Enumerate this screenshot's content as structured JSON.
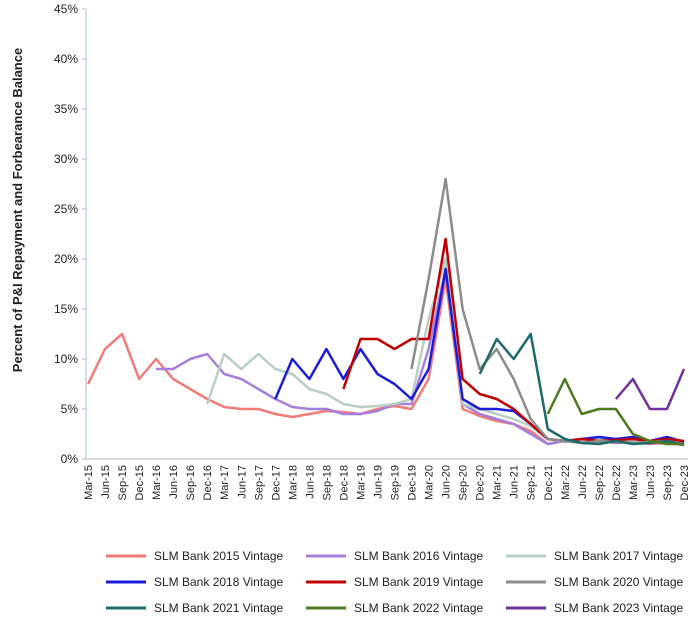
{
  "chart_data": {
    "type": "line",
    "y_label": "Percent of P&I Repayment and Forbearance  Balance",
    "categories": [
      "Mar-15",
      "Jun-15",
      "Sep-15",
      "Dec-15",
      "Mar-16",
      "Jun-16",
      "Sep-16",
      "Dec-16",
      "Mar-17",
      "Jun-17",
      "Sep-17",
      "Dec-17",
      "Mar-18",
      "Jun-18",
      "Sep-18",
      "Dec-18",
      "Mar-19",
      "Jun-19",
      "Sep-19",
      "Dec-19",
      "Mar-20",
      "Jun-20",
      "Sep-20",
      "Dec-20",
      "Mar-21",
      "Jun-21",
      "Sep-21",
      "Dec-21",
      "Mar-22",
      "Jun-22",
      "Sep-22",
      "Dec-22",
      "Mar-23",
      "Jun-23",
      "Sep-23",
      "Dec-23"
    ],
    "ylim": [
      0,
      45
    ],
    "yticks": [
      {
        "value": 0,
        "label": "0%"
      },
      {
        "value": 5,
        "label": "5%"
      },
      {
        "value": 10,
        "label": "10%"
      },
      {
        "value": 15,
        "label": "15%"
      },
      {
        "value": 20,
        "label": "20%"
      },
      {
        "value": 25,
        "label": "25%"
      },
      {
        "value": 30,
        "label": "30%"
      },
      {
        "value": 35,
        "label": "35%"
      },
      {
        "value": 40,
        "label": "40%"
      },
      {
        "value": 45,
        "label": "45%"
      }
    ],
    "series": [
      {
        "name": "SLM Bank 2015 Vintage",
        "color": "#f07c78",
        "values": [
          7.5,
          11,
          12.5,
          8,
          10,
          8,
          7,
          6,
          5.2,
          5,
          5,
          4.5,
          4.2,
          4.5,
          4.8,
          4.7,
          4.5,
          5,
          5.3,
          5,
          8,
          18,
          5,
          4.3,
          3.8,
          3.5,
          2.8,
          1.5,
          1.8,
          1.6,
          1.8,
          1.6,
          1.7,
          1.5,
          1.6,
          1.4
        ]
      },
      {
        "name": "SLM Bank 2016 Vintage",
        "color": "#a67fdc",
        "values": [
          null,
          null,
          null,
          null,
          9,
          9,
          10,
          10.5,
          8.5,
          8,
          7,
          6,
          5.2,
          5,
          5,
          4.5,
          4.5,
          4.8,
          5.5,
          5.5,
          11,
          19,
          5.5,
          4.5,
          4,
          3.5,
          2.5,
          1.5,
          1.8,
          1.7,
          1.8,
          1.6,
          1.8,
          1.6,
          1.7,
          1.5
        ]
      },
      {
        "name": "SLM Bank 2017 Vintage",
        "color": "#b9cfc4",
        "values": [
          null,
          null,
          null,
          null,
          null,
          null,
          null,
          5.5,
          10.5,
          9,
          10.5,
          9,
          8.5,
          7,
          6.5,
          5.5,
          5.2,
          5.3,
          5.5,
          6,
          14,
          20,
          5.5,
          5,
          4.5,
          4,
          3.3,
          2,
          1.7,
          1.8,
          2,
          1.8,
          1.9,
          1.7,
          2,
          1.6
        ]
      },
      {
        "name": "SLM Bank 2018 Vintage",
        "color": "#1c1cd8",
        "values": [
          null,
          null,
          null,
          null,
          null,
          null,
          null,
          null,
          null,
          null,
          null,
          6,
          10,
          8,
          11,
          8,
          11,
          8.5,
          7.5,
          6,
          9,
          19,
          6,
          5,
          5,
          4.8,
          3.5,
          2,
          1.8,
          2,
          2.2,
          2,
          2.2,
          1.8,
          2.2,
          1.7
        ]
      },
      {
        "name": "SLM Bank 2019 Vintage",
        "color": "#c00000",
        "values": [
          null,
          null,
          null,
          null,
          null,
          null,
          null,
          null,
          null,
          null,
          null,
          null,
          null,
          null,
          null,
          7,
          12,
          12,
          11,
          12,
          12,
          22,
          8,
          6.5,
          6,
          5,
          3.5,
          2,
          1.8,
          2,
          1.8,
          1.9,
          2,
          1.8,
          2,
          1.8
        ]
      },
      {
        "name": "SLM Bank 2020 Vintage",
        "color": "#8c8c8c",
        "values": [
          null,
          null,
          null,
          null,
          null,
          null,
          null,
          null,
          null,
          null,
          null,
          null,
          null,
          null,
          null,
          null,
          null,
          null,
          null,
          9,
          18,
          28,
          15,
          9,
          11,
          8,
          4,
          2,
          1.8,
          1.6,
          1.8,
          1.7,
          1.6,
          1.7,
          1.8,
          1.5
        ]
      },
      {
        "name": "SLM Bank 2021 Vintage",
        "color": "#1f6b6b",
        "values": [
          null,
          null,
          null,
          null,
          null,
          null,
          null,
          null,
          null,
          null,
          null,
          null,
          null,
          null,
          null,
          null,
          null,
          null,
          null,
          null,
          null,
          null,
          null,
          8.5,
          12,
          10,
          12.5,
          3,
          2,
          1.6,
          1.5,
          1.8,
          1.5,
          1.6,
          1.8,
          1.4
        ]
      },
      {
        "name": "SLM Bank 2022 Vintage",
        "color": "#4f7a1f",
        "values": [
          null,
          null,
          null,
          null,
          null,
          null,
          null,
          null,
          null,
          null,
          null,
          null,
          null,
          null,
          null,
          null,
          null,
          null,
          null,
          null,
          null,
          null,
          null,
          null,
          null,
          null,
          null,
          4.5,
          8,
          4.5,
          5,
          5,
          2.5,
          1.8,
          1.5,
          1.5
        ]
      },
      {
        "name": "SLM Bank 2023 Vintage",
        "color": "#7030a0",
        "values": [
          null,
          null,
          null,
          null,
          null,
          null,
          null,
          null,
          null,
          null,
          null,
          null,
          null,
          null,
          null,
          null,
          null,
          null,
          null,
          null,
          null,
          null,
          null,
          null,
          null,
          null,
          null,
          null,
          null,
          null,
          null,
          6,
          8,
          5,
          5,
          9
        ]
      }
    ]
  }
}
